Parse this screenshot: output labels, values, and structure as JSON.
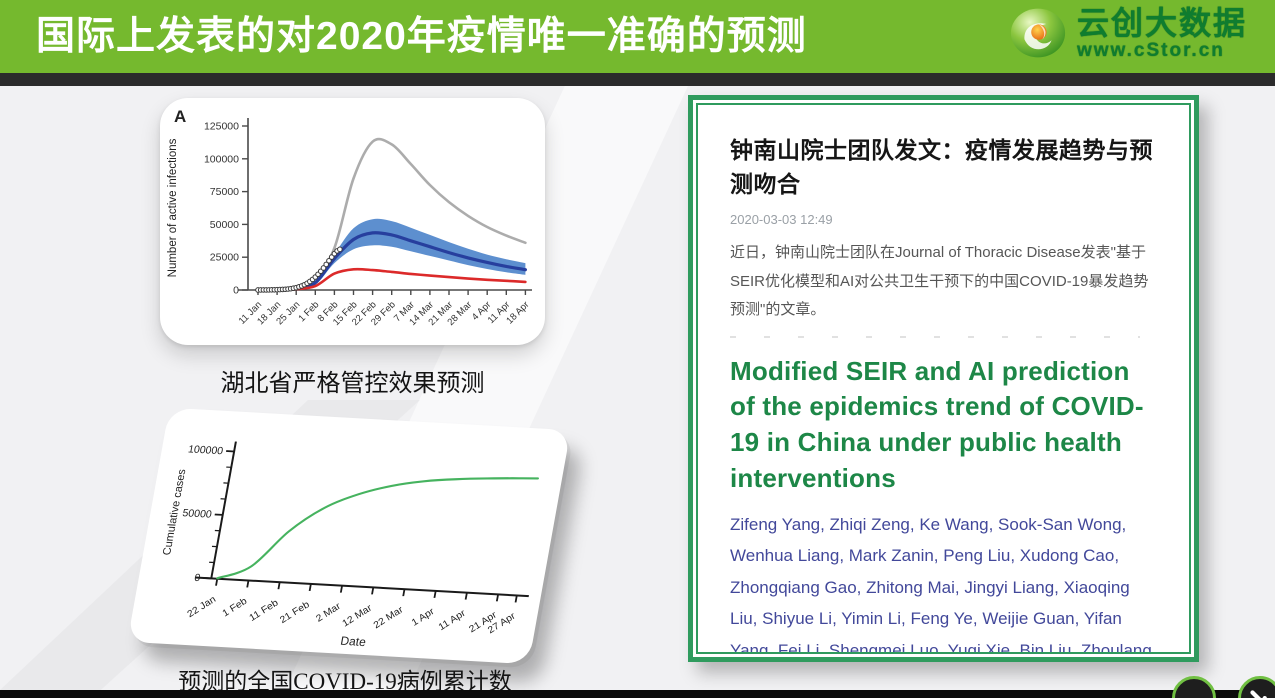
{
  "banner": {
    "title": "国际上发表的对2020年疫情唯一准确的预测",
    "bg_color": "#75b92e",
    "logo": {
      "brand": "云创大数据",
      "url": "www.cStor.cn",
      "text_color": "#0f7d2f"
    }
  },
  "captions": {
    "chart_a": "湖北省严格管控效果预测",
    "chart_b": "预测的全国COVID-19病例累计数"
  },
  "article": {
    "headline": "钟南山院士团队发文：疫情发展趋势与预测吻合",
    "timestamp": "2020-03-03 12:49",
    "body": "近日，钟南山院士团队在Journal of Thoracic Disease发表\"基于SEIR优化模型和AI对公共卫生干预下的中国COVID-19暴发趋势预测\"的文章。",
    "paper_title": "Modified SEIR and AI prediction of the epidemics trend of COVID-19 in China under public health interventions",
    "authors": "Zifeng Yang, Zhiqi Zeng, Ke Wang, Sook-San Wong, Wenhua Liang, Mark Zanin, Peng Liu, Xudong Cao, Zhongqiang Gao, Zhitong Mai, Jingyi Liang, Xiaoqing Liu, Shiyue Li, Yimin Li, Feng Ye, Weijie Guan, Yifan Yang, Fei Li, Shengmei Luo, Yuqi Xie, Bin Liu, Zhoulang Wang, Shaobo Zhang, Yaonan Wang, Nanshan Zhong, Jianxing He",
    "border_color": "#2f9b5e",
    "title_color": "#1d8747",
    "author_color": "#42489a"
  },
  "chart_data": [
    {
      "type": "line",
      "panel_label": "A",
      "ylabel": "Number of active infections",
      "ylim": [
        0,
        125000
      ],
      "yticks": [
        0,
        25000,
        50000,
        75000,
        100000,
        125000
      ],
      "categories": [
        "11 Jan",
        "18 Jan",
        "25 Jan",
        "1 Feb",
        "8 Feb",
        "15 Feb",
        "22 Feb",
        "29 Feb",
        "7 Mar",
        "14 Mar",
        "21 Mar",
        "28 Mar",
        "4 Apr",
        "11 Apr",
        "18 Apr"
      ],
      "grid": false,
      "legend": "none",
      "series": [
        {
          "name": "gray-line",
          "color": "#acacac",
          "width": 2.6,
          "values": [
            0,
            300,
            2000,
            9000,
            32000,
            85000,
            113000,
            111000,
            96000,
            80000,
            67000,
            56500,
            48000,
            41500,
            36000
          ]
        },
        {
          "name": "blue-band",
          "color": "#5d8fcf",
          "band": true,
          "upper": [
            0,
            350,
            1800,
            7500,
            27500,
            47000,
            54000,
            52500,
            47500,
            42000,
            36500,
            31500,
            27000,
            23500,
            20500
          ],
          "lower": [
            0,
            120,
            800,
            4000,
            20500,
            31000,
            34000,
            33000,
            29500,
            26000,
            22500,
            19000,
            16000,
            13500,
            11500
          ]
        },
        {
          "name": "blue-line",
          "color": "#273f9e",
          "width": 3.2,
          "values": [
            0,
            200,
            1200,
            5500,
            24000,
            38500,
            43500,
            42000,
            37500,
            33000,
            28500,
            24500,
            21000,
            18000,
            15500
          ]
        },
        {
          "name": "red-line",
          "color": "#dc2a2a",
          "width": 2.6,
          "values": [
            0,
            100,
            600,
            3000,
            12500,
            15800,
            15200,
            13800,
            12300,
            11000,
            9800,
            8700,
            7800,
            7000,
            6200
          ]
        }
      ],
      "observed_dots": {
        "name": "observed-dots",
        "fill": "#ffffff",
        "stroke": "#3c3c3c",
        "days_per_category": 7,
        "values": [
          30,
          40,
          55,
          75,
          100,
          135,
          180,
          240,
          320,
          430,
          570,
          760,
          1000,
          1350,
          1800,
          2400,
          3100,
          4000,
          5100,
          6500,
          8100,
          9900,
          12000,
          14300,
          16800,
          19500,
          22300,
          25100,
          27700,
          29800,
          31000
        ]
      }
    },
    {
      "type": "line",
      "xlabel": "Date",
      "ylabel": "Cumulative cases",
      "ylim": [
        0,
        100000
      ],
      "yticks": [
        0,
        50000,
        100000
      ],
      "minor_ytick_step": 12500,
      "categories": [
        "22 Jan",
        "1 Feb",
        "11 Feb",
        "21 Feb",
        "2 Mar",
        "12 Mar",
        "22 Mar",
        "1 Apr",
        "11 Apr",
        "21 Apr",
        "27 Apr"
      ],
      "x_days": [
        0,
        10,
        20,
        30,
        40,
        50,
        60,
        70,
        80,
        90,
        96
      ],
      "total_days": 96,
      "grid": false,
      "legend": "none",
      "series": [
        {
          "name": "green-line",
          "color": "#46b35f",
          "width": 2.2,
          "values": [
            300,
            11000,
            40000,
            60000,
            72000,
            80000,
            85000,
            88000,
            90000,
            91500,
            92200
          ]
        }
      ]
    }
  ],
  "nav": {
    "button_count": 2,
    "ring_color": "#71c043"
  }
}
